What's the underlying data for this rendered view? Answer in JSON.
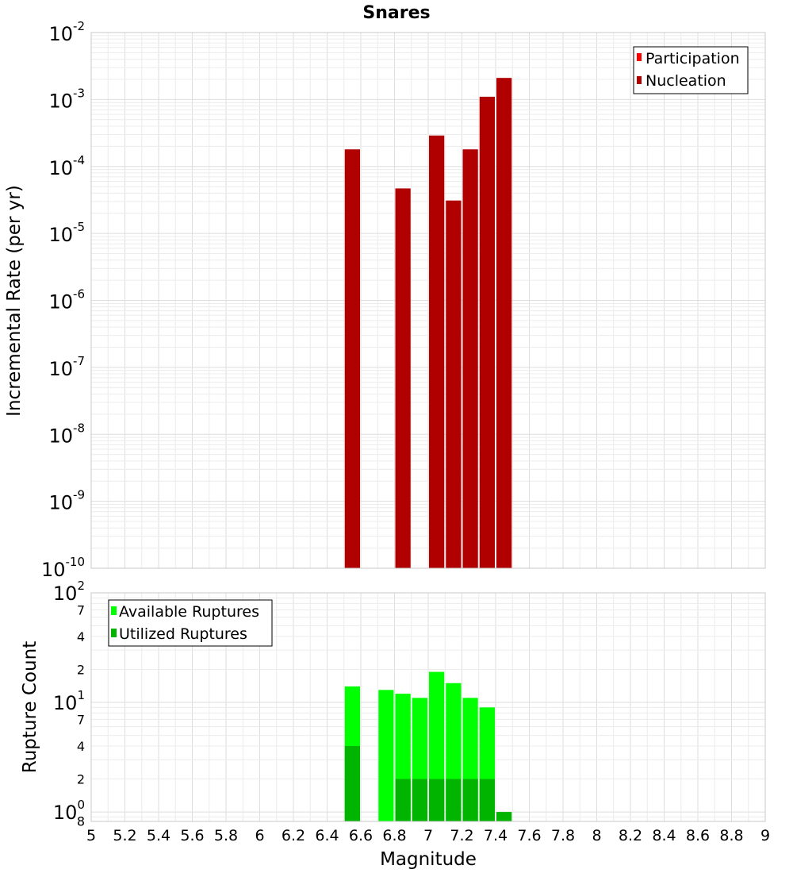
{
  "chart_data": [
    {
      "type": "bar",
      "title": "Snares",
      "xlabel": "Magnitude",
      "ylabel": "Incremental Rate (per yr)",
      "yscale": "log",
      "ylim": [
        1e-10,
        0.01
      ],
      "xlim": [
        5,
        9
      ],
      "bin_width": 0.1,
      "y_tick_labels": [
        {
          "base": "10",
          "exp": "-2"
        },
        {
          "base": "10",
          "exp": "-3"
        },
        {
          "base": "10",
          "exp": "-4"
        },
        {
          "base": "10",
          "exp": "-5"
        },
        {
          "base": "10",
          "exp": "-6"
        },
        {
          "base": "10",
          "exp": "-7"
        },
        {
          "base": "10",
          "exp": "-8"
        },
        {
          "base": "10",
          "exp": "-9"
        },
        {
          "base": "10",
          "exp": "-10"
        }
      ],
      "legend": {
        "position": "top-right"
      },
      "series": [
        {
          "name": "Participation",
          "color": "#ff0000",
          "x": [],
          "values": []
        },
        {
          "name": "Nucleation",
          "color": "#b00000",
          "x": [
            6.55,
            6.85,
            7.05,
            7.15,
            7.25,
            7.35,
            7.45
          ],
          "values": [
            0.00018,
            4.7e-05,
            0.00029,
            3.1e-05,
            0.00018,
            0.0011,
            0.0021
          ]
        }
      ]
    },
    {
      "type": "bar",
      "xlabel": "Magnitude",
      "ylabel": "Rupture Count",
      "yscale": "log",
      "ylim": [
        0.82,
        100
      ],
      "xlim": [
        5,
        9
      ],
      "bin_width": 0.1,
      "x_tick_labels": [
        "5",
        "5.2",
        "5.4",
        "5.6",
        "5.8",
        "6",
        "6.2",
        "6.4",
        "6.6",
        "6.8",
        "7",
        "7.2",
        "7.4",
        "7.6",
        "7.8",
        "8",
        "8.2",
        "8.4",
        "8.6",
        "8.8",
        "9"
      ],
      "y_tick_labels": [
        {
          "base": "10",
          "exp": "2"
        },
        {
          "base": "7",
          "exp": ""
        },
        {
          "base": "4",
          "exp": ""
        },
        {
          "base": "2",
          "exp": ""
        },
        {
          "base": "10",
          "exp": "1"
        },
        {
          "base": "7",
          "exp": ""
        },
        {
          "base": "4",
          "exp": ""
        },
        {
          "base": "2",
          "exp": ""
        },
        {
          "base": "10",
          "exp": "0"
        },
        {
          "base": "8",
          "exp": ""
        }
      ],
      "legend": {
        "position": "top-left"
      },
      "series": [
        {
          "name": "Available Ruptures",
          "color": "#00ff00",
          "x": [
            6.55,
            6.75,
            6.85,
            6.95,
            7.05,
            7.15,
            7.25,
            7.35
          ],
          "values": [
            14,
            13,
            12,
            11,
            19,
            15,
            11,
            9
          ]
        },
        {
          "name": "Utilized Ruptures",
          "color": "#00b400",
          "x": [
            6.55,
            6.85,
            6.95,
            7.05,
            7.15,
            7.25,
            7.35,
            7.45
          ],
          "values": [
            4,
            2,
            2,
            2,
            2,
            2,
            2,
            1
          ]
        }
      ]
    }
  ]
}
